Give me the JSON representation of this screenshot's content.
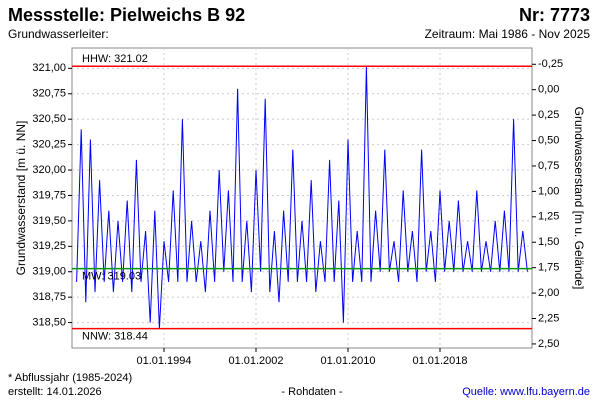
{
  "chart_data": {
    "type": "line",
    "title": "Messstelle: Pielweichs B 92",
    "number": "Nr: 7773",
    "subtitle_left": "Grundwasserleiter:",
    "subtitle_right": "Zeitraum: Mai 1986 - Nov 2025",
    "ylabel": "Grundwasserstand [m ü. NN]",
    "y2label": "Grundwasserstand [m u. Gelände]",
    "footnote": "* Abflussjahr (1985-2024)",
    "created": "erstellt:  14.01.2026",
    "rawdata": "- Rohdaten -",
    "source": "Quelle: www.lfu.bayern.de",
    "grid": true,
    "xlim": [
      1986,
      2026
    ],
    "xticks": [
      {
        "value": 1994,
        "label": "01.01.1994"
      },
      {
        "value": 2002,
        "label": "01.01.2002"
      },
      {
        "value": 2010,
        "label": "01.01.2010"
      },
      {
        "value": 2018,
        "label": "01.01.2018"
      }
    ],
    "ylim": [
      318.25,
      321.2
    ],
    "yticks": [
      {
        "value": 318.5,
        "label": "318,50"
      },
      {
        "value": 318.75,
        "label": "318,75"
      },
      {
        "value": 319,
        "label": "319,00"
      },
      {
        "value": 319.25,
        "label": "319,25"
      },
      {
        "value": 319.5,
        "label": "319,50"
      },
      {
        "value": 319.75,
        "label": "319,75"
      },
      {
        "value": 320,
        "label": "320,00"
      },
      {
        "value": 320.25,
        "label": "320,25"
      },
      {
        "value": 320.5,
        "label": "320,50"
      },
      {
        "value": 320.75,
        "label": "320,75"
      },
      {
        "value": 321,
        "label": "321,00"
      }
    ],
    "y2lim": [
      -0.41,
      2.54
    ],
    "y2_inverted": true,
    "y2ticks": [
      {
        "value": -0.25,
        "label": "-0,25"
      },
      {
        "value": 0,
        "label": "0,00"
      },
      {
        "value": 0.25,
        "label": "0,25"
      },
      {
        "value": 0.5,
        "label": "0,50"
      },
      {
        "value": 0.75,
        "label": "0,75"
      },
      {
        "value": 1,
        "label": "1,00"
      },
      {
        "value": 1.25,
        "label": "1,25"
      },
      {
        "value": 1.5,
        "label": "1,50"
      },
      {
        "value": 1.75,
        "label": "1,75"
      },
      {
        "value": 2,
        "label": "2,00"
      },
      {
        "value": 2.25,
        "label": "2,25"
      },
      {
        "value": 2.5,
        "label": "2,50"
      }
    ],
    "reference_lines": [
      {
        "label": "HHW: 321.02",
        "value": 321.02,
        "color": "#ff0000"
      },
      {
        "label": "MW: 319.03",
        "value": 319.03,
        "color": "#009900"
      },
      {
        "label": "NNW: 318.44",
        "value": 318.44,
        "color": "#ff0000"
      }
    ],
    "series": [
      {
        "color": "#0000ff",
        "x": [
          1986.4,
          1986.8,
          1987.2,
          1987.6,
          1988.0,
          1988.4,
          1988.8,
          1989.2,
          1989.6,
          1990.0,
          1990.4,
          1990.8,
          1991.2,
          1991.6,
          1992.0,
          1992.4,
          1992.8,
          1993.2,
          1993.6,
          1994.0,
          1994.4,
          1994.8,
          1995.2,
          1995.6,
          1996.0,
          1996.4,
          1996.8,
          1997.2,
          1997.6,
          1998.0,
          1998.4,
          1998.8,
          1999.2,
          1999.6,
          2000.0,
          2000.4,
          2000.8,
          2001.2,
          2001.6,
          2002.0,
          2002.4,
          2002.8,
          2003.2,
          2003.6,
          2004.0,
          2004.4,
          2004.8,
          2005.2,
          2005.6,
          2006.0,
          2006.4,
          2006.8,
          2007.2,
          2007.6,
          2008.0,
          2008.4,
          2008.8,
          2009.2,
          2009.6,
          2010.0,
          2010.4,
          2010.8,
          2011.2,
          2011.6,
          2012.0,
          2012.4,
          2012.8,
          2013.2,
          2013.6,
          2014.0,
          2014.4,
          2014.8,
          2015.2,
          2015.6,
          2016.0,
          2016.4,
          2016.8,
          2017.2,
          2017.6,
          2018.0,
          2018.4,
          2018.8,
          2019.2,
          2019.6,
          2020.0,
          2020.4,
          2020.8,
          2021.2,
          2021.6,
          2022.0,
          2022.4,
          2022.8,
          2023.2,
          2023.6,
          2024.0,
          2024.4,
          2024.8,
          2025.2,
          2025.6
        ],
        "values": [
          318.9,
          320.4,
          318.7,
          320.3,
          318.8,
          319.9,
          318.9,
          319.6,
          318.8,
          319.5,
          318.9,
          319.7,
          318.8,
          320.1,
          318.9,
          319.4,
          318.5,
          319.6,
          318.44,
          319.3,
          318.9,
          319.8,
          318.9,
          320.5,
          318.9,
          319.5,
          318.9,
          319.3,
          318.8,
          319.6,
          318.9,
          320.0,
          319.0,
          319.8,
          318.9,
          320.8,
          318.9,
          319.5,
          318.8,
          320.0,
          319.0,
          320.7,
          318.8,
          319.4,
          318.7,
          319.6,
          318.9,
          320.2,
          318.9,
          319.5,
          318.9,
          319.9,
          318.8,
          319.3,
          318.9,
          320.1,
          318.9,
          319.7,
          318.5,
          320.3,
          318.9,
          319.4,
          318.9,
          321.02,
          318.9,
          319.6,
          319.0,
          320.2,
          319.0,
          319.3,
          318.9,
          319.8,
          319.0,
          319.4,
          318.9,
          320.2,
          319.0,
          319.4,
          318.9,
          319.8,
          319.0,
          319.5,
          319.0,
          319.7,
          319.0,
          319.3,
          319.0,
          319.8,
          319.0,
          319.3,
          319.0,
          319.5,
          319.0,
          319.6,
          319.0,
          320.5,
          319.0,
          319.4,
          319.0
        ]
      }
    ]
  }
}
